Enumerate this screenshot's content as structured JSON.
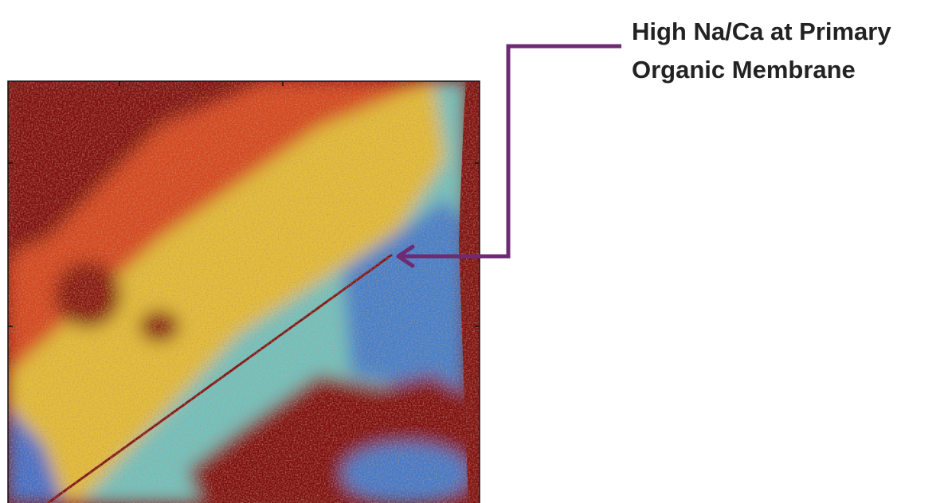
{
  "annotation": {
    "lines": [
      "High Na/Ca at Primary",
      "Organic Membrane"
    ]
  }
}
